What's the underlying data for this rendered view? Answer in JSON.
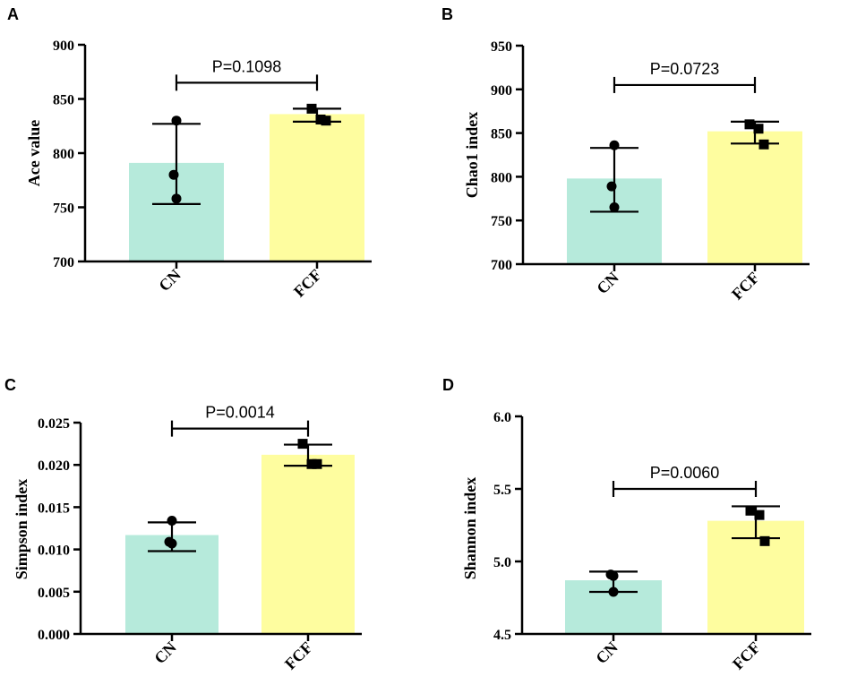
{
  "colors": {
    "cn_bar": "#b6eadb",
    "fcf_bar": "#fefd9f",
    "ink": "#000000"
  },
  "chart_data": [
    {
      "panel": "A",
      "type": "bar",
      "categories": [
        "CN",
        "FCF"
      ],
      "values": [
        791,
        836
      ],
      "errors": [
        [
          753,
          827
        ],
        [
          829,
          841
        ]
      ],
      "points": [
        [
          830,
          780,
          758
        ],
        [
          841,
          831,
          830
        ]
      ],
      "markers": [
        "circle",
        "square"
      ],
      "ylabel": "Ace value",
      "ylim": [
        700,
        900
      ],
      "yticks": [
        "700",
        "750",
        "800",
        "850",
        "900"
      ],
      "pvalue": "P=0.1098",
      "bracket_y": 865
    },
    {
      "panel": "B",
      "type": "bar",
      "categories": [
        "CN",
        "FCF"
      ],
      "values": [
        798,
        852
      ],
      "errors": [
        [
          760,
          833
        ],
        [
          838,
          863
        ]
      ],
      "points": [
        [
          836,
          789,
          765
        ],
        [
          860,
          855,
          837
        ]
      ],
      "markers": [
        "circle",
        "square"
      ],
      "ylabel": "Chao1 index",
      "ylim": [
        700,
        950
      ],
      "yticks": [
        "700",
        "750",
        "800",
        "850",
        "900",
        "950"
      ],
      "pvalue": "P=0.0723",
      "bracket_y": 905
    },
    {
      "panel": "C",
      "type": "bar",
      "categories": [
        "CN",
        "FCF"
      ],
      "values": [
        0.0117,
        0.0212
      ],
      "errors": [
        [
          0.0098,
          0.0132
        ],
        [
          0.0199,
          0.0224
        ]
      ],
      "points": [
        [
          0.0134,
          0.0109,
          0.0107
        ],
        [
          0.0225,
          0.0201,
          0.0201
        ]
      ],
      "markers": [
        "circle",
        "square"
      ],
      "ylabel": "Simpson index",
      "ylim": [
        0,
        0.025
      ],
      "yticks": [
        "0.000",
        "0.005",
        "0.010",
        "0.015",
        "0.020",
        "0.025"
      ],
      "pvalue": "P=0.0014",
      "bracket_y": 0.0243
    },
    {
      "panel": "D",
      "type": "bar",
      "categories": [
        "CN",
        "FCF"
      ],
      "values": [
        4.87,
        5.28
      ],
      "errors": [
        [
          4.79,
          4.93
        ],
        [
          5.16,
          5.38
        ]
      ],
      "points": [
        [
          4.9,
          4.91,
          4.79
        ],
        [
          5.35,
          5.32,
          5.14
        ]
      ],
      "markers": [
        "circle",
        "square"
      ],
      "ylabel": "Shannon index",
      "ylim": [
        4.5,
        6.0
      ],
      "yticks": [
        "4.5",
        "5.0",
        "5.5",
        "6.0"
      ],
      "pvalue": "P=0.0060",
      "bracket_y": 5.5
    }
  ]
}
